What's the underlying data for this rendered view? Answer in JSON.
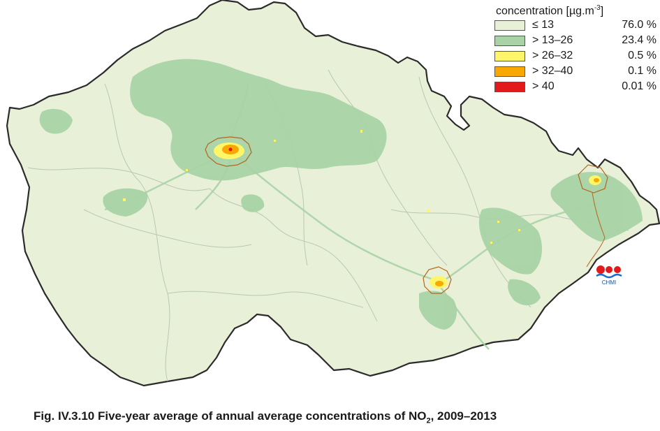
{
  "legend": {
    "title_main": "concentration [µg.m",
    "title_sup": "-3",
    "title_end": "]",
    "items": [
      {
        "label": "≤ 13",
        "percent": "76.0 %",
        "color": "#e8f0d8"
      },
      {
        "label": "> 13–26",
        "percent": "23.4 %",
        "color": "#a9d3a7"
      },
      {
        "label": "> 26–32",
        "percent": "0.5 %",
        "color": "#fff568"
      },
      {
        "label": "> 32–40",
        "percent": "0.1 %",
        "color": "#f8a800"
      },
      {
        "label": "> 40",
        "percent": "0.01 %",
        "color": "#e3191c"
      }
    ]
  },
  "logo": {
    "text": "CHMI"
  },
  "caption": {
    "prefix": "Fig. IV.3.10  Five-year average of annual average concentrations of NO",
    "sub": "2",
    "suffix": ", 2009–2013"
  },
  "colors": {
    "border": "#2b2b2b",
    "region_lines": "#b9c8b1",
    "city_boundary": "#b5651d"
  }
}
